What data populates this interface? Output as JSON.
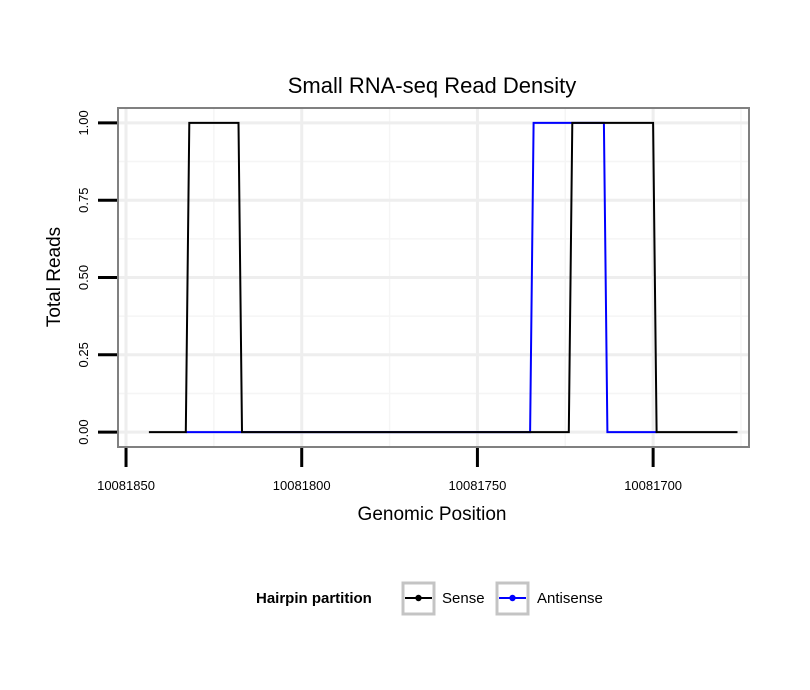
{
  "chart_data": {
    "type": "line",
    "title": "Small RNA-seq Read Density",
    "xlabel": "Genomic Position",
    "ylabel": "Total Reads",
    "x_reversed": true,
    "xlim": [
      10081852,
      10081673
    ],
    "ylim": [
      -0.045,
      1.045
    ],
    "x_ticks": [
      10081850,
      10081800,
      10081750,
      10081700
    ],
    "x_tick_labels": [
      "10081850",
      "10081800",
      "10081750",
      "10081700"
    ],
    "y_ticks": [
      0,
      0.25,
      0.5,
      0.75,
      1
    ],
    "y_tick_labels": [
      "0.00",
      "0.25",
      "0.50",
      "0.75",
      "1.00"
    ],
    "grid": true,
    "legend": {
      "title": "Hairpin partition",
      "position": "bottom",
      "entries": [
        {
          "label": "Sense",
          "color": "#000000"
        },
        {
          "label": "Antisense",
          "color": "#0000ff"
        }
      ]
    },
    "series": [
      {
        "name": "Sense",
        "color": "#000000",
        "x": [
          10081843.5,
          10081833,
          10081832,
          10081818,
          10081817,
          10081734,
          10081733,
          10081724,
          10081723,
          10081700,
          10081699,
          10081676
        ],
        "y": [
          0,
          0,
          1,
          1,
          0,
          0,
          0,
          0,
          1,
          1,
          0,
          0
        ]
      },
      {
        "name": "Antisense",
        "color": "#0000ff",
        "x": [
          10081833,
          10081817,
          10081735,
          10081734,
          10081724,
          10081714,
          10081713,
          10081699
        ],
        "y": [
          0,
          0,
          0,
          1,
          1,
          1,
          0,
          0
        ]
      }
    ]
  }
}
